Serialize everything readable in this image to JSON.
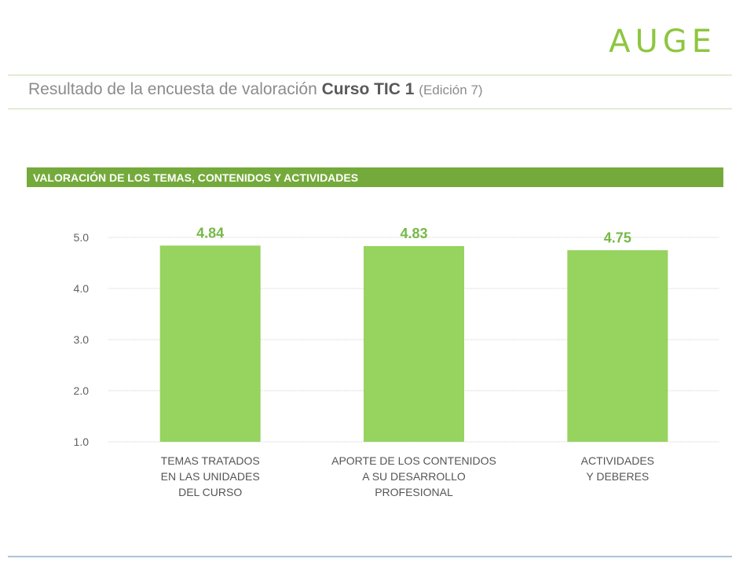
{
  "logo": "AUGE",
  "header": {
    "title_main": "Resultado de la encuesta de valoración ",
    "title_bold": "Curso TIC 1",
    "title_suffix": "(Edición 7)"
  },
  "section_title": "VALORACIÓN DE LOS TEMAS, CONTENIDOS Y ACTIVIDADES",
  "colors": {
    "brand_green": "#8dc63f",
    "section_green": "#74aa3b",
    "bar_green": "#96d35f",
    "value_green": "#76b947",
    "rule_green": "#c9dcb1",
    "bottom_rule_blue": "#a9c4de",
    "grid": "#d0d0d0"
  },
  "chart_data": {
    "type": "bar",
    "categories": [
      [
        "TEMAS TRATADOS",
        "EN LAS UNIDADES",
        "DEL CURSO"
      ],
      [
        "APORTE DE LOS CONTENIDOS",
        "A SU DESARROLLO",
        "PROFESIONAL"
      ],
      [
        "ACTIVIDADES",
        "Y DEBERES"
      ]
    ],
    "values": [
      4.84,
      4.83,
      4.75
    ],
    "value_labels": [
      "4.84",
      "4.83",
      "4.75"
    ],
    "yticks": [
      "1.0",
      "2.0",
      "3.0",
      "4.0",
      "5.0"
    ],
    "ylim": [
      1,
      5
    ],
    "grid": true,
    "title": "",
    "xlabel": "",
    "ylabel": ""
  }
}
